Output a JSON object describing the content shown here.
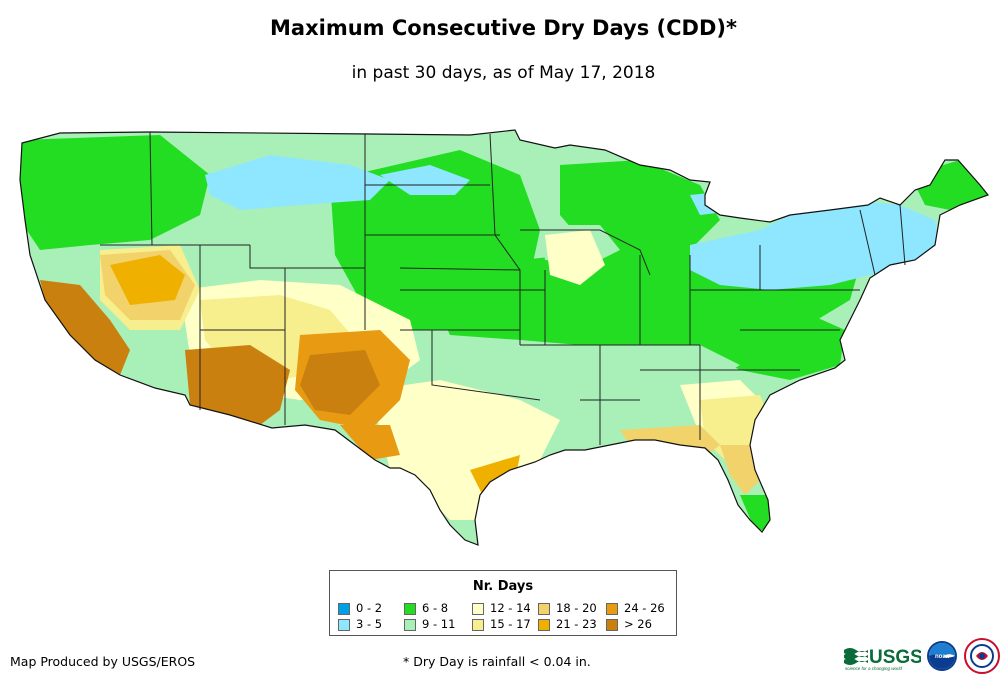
{
  "map": {
    "title": "Maximum Consecutive Dry Days (CDD)*",
    "subtitle": "in past 30 days, as of May 17, 2018",
    "region": "contiguous-united-states"
  },
  "legend": {
    "title": "Nr. Days",
    "items": [
      {
        "label": "0 - 2",
        "color": "#00a0e8"
      },
      {
        "label": "3 - 5",
        "color": "#8ee6ff"
      },
      {
        "label": "6 - 8",
        "color": "#22dd22"
      },
      {
        "label": "9 - 11",
        "color": "#a8f0b8"
      },
      {
        "label": "12 - 14",
        "color": "#ffffc8"
      },
      {
        "label": "15 - 17",
        "color": "#f7ee8e"
      },
      {
        "label": "18 - 20",
        "color": "#f2d26a"
      },
      {
        "label": "21 - 23",
        "color": "#f0b000"
      },
      {
        "label": "24 - 26",
        "color": "#e79a12"
      },
      {
        "label": "> 26",
        "color": "#c9800e"
      }
    ]
  },
  "footer": {
    "credit": "Map Produced by USGS/EROS",
    "note": "* Dry Day is rainfall < 0.04 in."
  },
  "logos": {
    "usgs_text": "USGS",
    "usgs_tagline": "science for a changing world",
    "noaa_text": "noaa"
  }
}
